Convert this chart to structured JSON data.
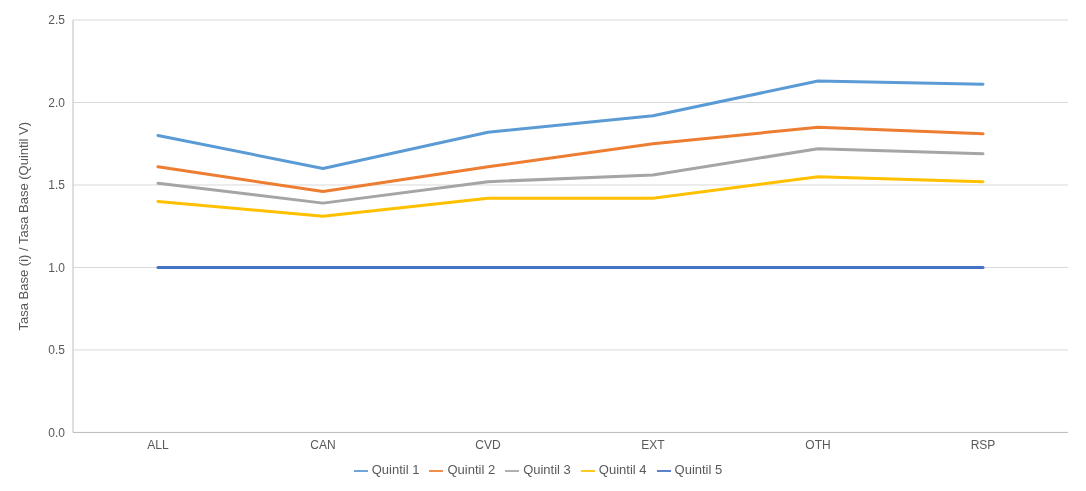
{
  "chart_data": {
    "type": "line",
    "ylabel": "Tasa Base (i) / Tasa Base (Quintil V)",
    "categories": [
      "ALL",
      "CAN",
      "CVD",
      "EXT",
      "OTH",
      "RSP"
    ],
    "series": [
      {
        "name": "Quintil 1",
        "color": "#5b9bd5",
        "values": [
          1.8,
          1.6,
          1.82,
          1.92,
          2.13,
          2.11
        ]
      },
      {
        "name": "Quintil 2",
        "color": "#ed7d31",
        "values": [
          1.61,
          1.46,
          1.61,
          1.75,
          1.85,
          1.81
        ]
      },
      {
        "name": "Quintil 3",
        "color": "#a5a5a5",
        "values": [
          1.51,
          1.39,
          1.52,
          1.56,
          1.72,
          1.69
        ]
      },
      {
        "name": "Quintil 4",
        "color": "#ffc000",
        "values": [
          1.4,
          1.31,
          1.42,
          1.42,
          1.55,
          1.52
        ]
      },
      {
        "name": "Quintil 5",
        "color": "#4472c4",
        "values": [
          1.0,
          1.0,
          1.0,
          1.0,
          1.0,
          1.0
        ]
      }
    ],
    "ylim": [
      0,
      2.5
    ],
    "yticks": [
      {
        "value": 0,
        "label": "0.0"
      },
      {
        "value": 0.5,
        "label": "0.5"
      },
      {
        "value": 1,
        "label": "1.0"
      },
      {
        "value": 1.5,
        "label": "1.5"
      },
      {
        "value": 2,
        "label": "2.0"
      },
      {
        "value": 2.5,
        "label": "2.5"
      }
    ],
    "grid": "y",
    "legend": "bottom",
    "marker": "none",
    "line_style": "solid"
  }
}
